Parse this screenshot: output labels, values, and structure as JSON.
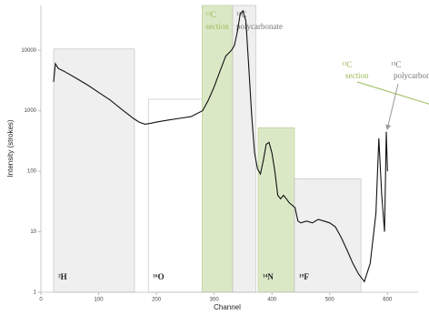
{
  "chart_data": {
    "type": "line",
    "x_label": "Channel",
    "y_label": "Intensity (strokes)",
    "log_y": true,
    "color": "#111111",
    "xlim": [
      0,
      653
    ],
    "ylim": [
      1,
      55000
    ],
    "xticks": [
      0,
      100,
      200,
      300,
      400,
      500,
      600
    ],
    "yticks": [
      1,
      10,
      100,
      1000,
      10000
    ],
    "x": [
      22,
      25,
      30,
      40,
      60,
      80,
      100,
      120,
      140,
      160,
      170,
      180,
      190,
      200,
      220,
      240,
      260,
      280,
      290,
      300,
      310,
      320,
      330,
      335,
      340,
      345,
      350,
      355,
      360,
      365,
      370,
      375,
      380,
      385,
      390,
      395,
      400,
      405,
      410,
      415,
      420,
      425,
      430,
      440,
      445,
      450,
      460,
      470,
      480,
      490,
      500,
      510,
      520,
      530,
      540,
      550,
      560,
      570,
      580,
      585,
      590,
      595,
      598,
      600
    ],
    "values": [
      3000,
      6000,
      5000,
      4500,
      3500,
      2700,
      2000,
      1500,
      1050,
      750,
      650,
      600,
      620,
      650,
      700,
      750,
      800,
      1000,
      1500,
      2500,
      4500,
      8000,
      10000,
      12000,
      20000,
      40000,
      45000,
      30000,
      5000,
      800,
      200,
      110,
      90,
      150,
      280,
      300,
      200,
      100,
      40,
      35,
      40,
      35,
      30,
      25,
      15,
      14,
      15,
      14,
      16,
      15,
      14,
      12,
      8,
      5,
      3,
      2,
      1.5,
      3,
      20,
      350,
      40,
      10,
      450,
      100
    ],
    "regions": [
      {
        "x0": 22,
        "x1": 162,
        "top": 10500,
        "color": "#efefef",
        "label": [
          "²H"
        ]
      },
      {
        "x0": 186,
        "x1": 279,
        "top": 1550,
        "color": "#ffffff",
        "label": [
          "¹⁶O"
        ]
      },
      {
        "x0": 279,
        "x1": 332,
        "top": 55000,
        "color": "#dbe8c6",
        "label": [
          "¹³C",
          "section"
        ],
        "label_color": "#9bbb59"
      },
      {
        "x0": 332,
        "x1": 372,
        "top": 55000,
        "color": "#efefef",
        "label": [
          "¹³C",
          "polycarbonate"
        ],
        "label_color": "#777777"
      },
      {
        "x0": 376,
        "x1": 439,
        "top": 525,
        "color": "#dbe8c6",
        "label": [
          "¹⁴N"
        ]
      },
      {
        "x0": 439,
        "x1": 554,
        "top": 75,
        "color": "#efefef",
        "label": [
          "¹⁹F"
        ]
      }
    ],
    "annotations": [
      {
        "lines": [
          "¹³C",
          "section"
        ],
        "color": "#9bbb59"
      },
      {
        "lines": [
          "¹³C",
          "polycarbonate"
        ],
        "color": "#777777"
      }
    ]
  }
}
